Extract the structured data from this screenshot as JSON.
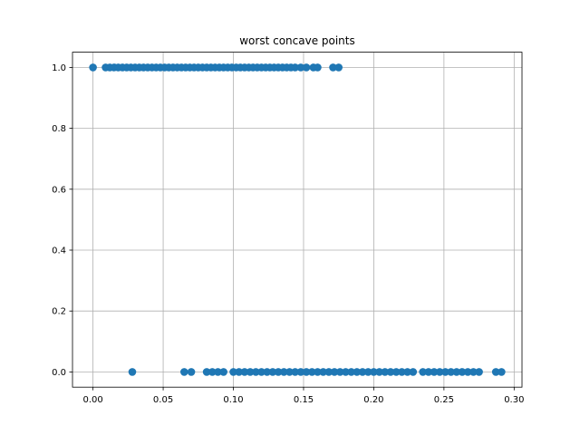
{
  "chart_data": {
    "type": "scatter",
    "title": "worst concave points",
    "xlabel": "",
    "ylabel": "",
    "xlim": [
      -0.0146,
      0.3056
    ],
    "ylim": [
      -0.05,
      1.05
    ],
    "xticks": [
      "0.00",
      "0.05",
      "0.10",
      "0.15",
      "0.20",
      "0.25",
      "0.30"
    ],
    "xtick_values": [
      0.0,
      0.05,
      0.1,
      0.15,
      0.2,
      0.25,
      0.3
    ],
    "yticks": [
      "0.0",
      "0.2",
      "0.4",
      "0.6",
      "0.8",
      "1.0"
    ],
    "ytick_values": [
      0.0,
      0.2,
      0.4,
      0.6,
      0.8,
      1.0
    ],
    "grid": true,
    "marker_color": "#1f77b4",
    "series": [
      {
        "x": [
          0.0,
          0.009,
          0.012,
          0.015,
          0.018,
          0.021,
          0.024,
          0.027,
          0.03,
          0.033,
          0.036,
          0.039,
          0.042,
          0.045,
          0.048,
          0.051,
          0.054,
          0.057,
          0.06,
          0.063,
          0.066,
          0.069,
          0.072,
          0.075,
          0.078,
          0.081,
          0.084,
          0.087,
          0.09,
          0.093,
          0.096,
          0.099,
          0.102,
          0.105,
          0.108,
          0.111,
          0.114,
          0.117,
          0.12,
          0.123,
          0.126,
          0.129,
          0.132,
          0.135,
          0.138,
          0.141,
          0.144,
          0.148,
          0.152,
          0.157,
          0.16,
          0.171,
          0.175,
          0.028,
          0.065,
          0.07,
          0.081,
          0.085,
          0.089,
          0.093,
          0.1,
          0.104,
          0.108,
          0.112,
          0.116,
          0.12,
          0.124,
          0.128,
          0.132,
          0.136,
          0.14,
          0.144,
          0.148,
          0.152,
          0.156,
          0.16,
          0.164,
          0.168,
          0.172,
          0.176,
          0.18,
          0.184,
          0.188,
          0.192,
          0.196,
          0.2,
          0.204,
          0.208,
          0.212,
          0.216,
          0.22,
          0.224,
          0.228,
          0.235,
          0.239,
          0.243,
          0.247,
          0.251,
          0.255,
          0.259,
          0.263,
          0.267,
          0.271,
          0.275,
          0.287,
          0.291
        ],
        "y": [
          1,
          1,
          1,
          1,
          1,
          1,
          1,
          1,
          1,
          1,
          1,
          1,
          1,
          1,
          1,
          1,
          1,
          1,
          1,
          1,
          1,
          1,
          1,
          1,
          1,
          1,
          1,
          1,
          1,
          1,
          1,
          1,
          1,
          1,
          1,
          1,
          1,
          1,
          1,
          1,
          1,
          1,
          1,
          1,
          1,
          1,
          1,
          1,
          1,
          1,
          1,
          1,
          1,
          0,
          0,
          0,
          0,
          0,
          0,
          0,
          0,
          0,
          0,
          0,
          0,
          0,
          0,
          0,
          0,
          0,
          0,
          0,
          0,
          0,
          0,
          0,
          0,
          0,
          0,
          0,
          0,
          0,
          0,
          0,
          0,
          0,
          0,
          0,
          0,
          0,
          0,
          0,
          0,
          0,
          0,
          0,
          0,
          0,
          0,
          0,
          0,
          0,
          0,
          0,
          0,
          0
        ]
      }
    ]
  }
}
